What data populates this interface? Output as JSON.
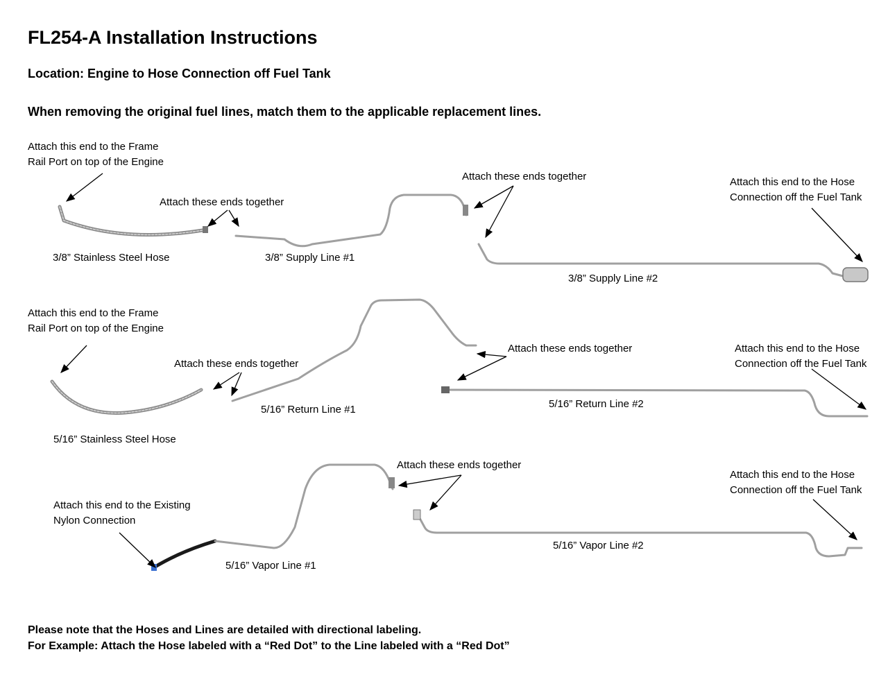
{
  "title": "FL254-A Installation Instructions",
  "location": "Location: Engine to Hose Connection off Fuel Tank",
  "intro": "When removing the original fuel lines, match them to the applicable replacement lines.",
  "rows": [
    {
      "engine_note": [
        "Attach this end to the Frame",
        "Rail Port on top of the Engine"
      ],
      "join_note_1": "Attach these ends together",
      "join_note_2": "Attach these ends together",
      "tank_note": [
        "Attach this end to the Hose",
        "Connection off the Fuel Tank"
      ],
      "hose": "3/8” Stainless Steel Hose",
      "line1": "3/8” Supply Line #1",
      "line2": "3/8” Supply Line #2"
    },
    {
      "engine_note": [
        "Attach this end to the Frame",
        "Rail Port on top of the Engine"
      ],
      "join_note_1": "Attach these ends together",
      "join_note_2": "Attach these ends together",
      "tank_note": [
        "Attach this end to the Hose",
        "Connection off the Fuel Tank"
      ],
      "hose": "5/16” Stainless Steel Hose",
      "line1": "5/16” Return Line #1",
      "line2": "5/16” Return Line #2"
    },
    {
      "engine_note": [
        "Attach this end to the Existing",
        "Nylon Connection"
      ],
      "join_note_1": "Attach these ends together",
      "tank_note": [
        "Attach this end to the Hose",
        "Connection off the Fuel Tank"
      ],
      "line1": "5/16” Vapor Line #1",
      "line2": "5/16” Vapor Line #2"
    }
  ],
  "notes": [
    "Please note that the Hoses and Lines are detailed with directional labeling.",
    "For Example: Attach the Hose labeled with a “Red Dot” to the Line labeled with a “Red Dot”"
  ],
  "colors": {
    "line": "#9a9a9a",
    "hose_braid": "#8c8c8c",
    "nylon": "#1a1a1a"
  }
}
